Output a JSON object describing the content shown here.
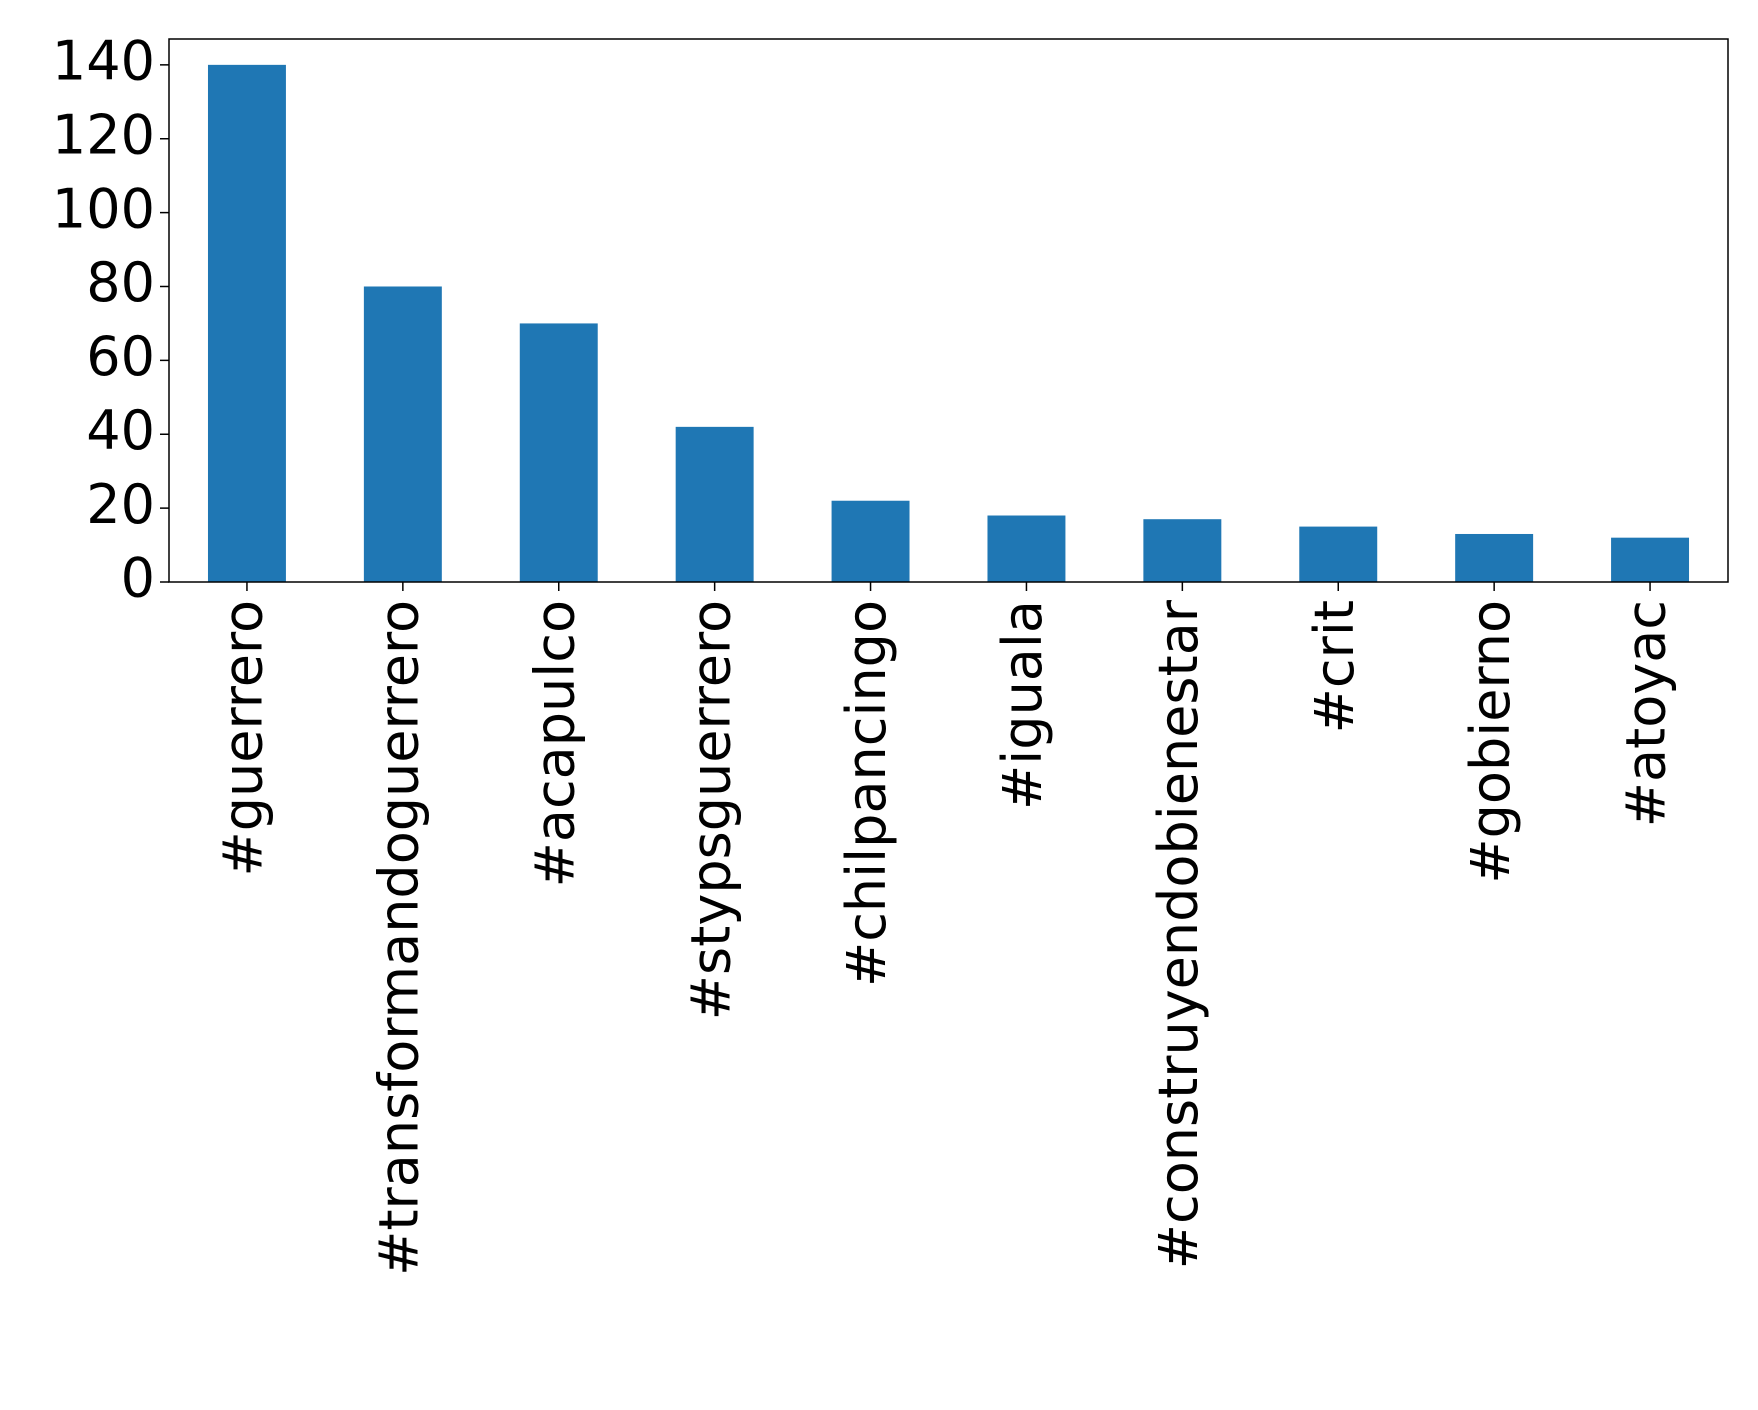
{
  "chart_data": {
    "type": "bar",
    "categories": [
      "#guerrero",
      "#transformandoguerrero",
      "#acapulco",
      "#stypsguerrero",
      "#chilpancingo",
      "#iguala",
      "#construyendobienestar",
      "#crit",
      "#gobierno",
      "#atoyac"
    ],
    "values": [
      140,
      80,
      70,
      42,
      22,
      18,
      17,
      15,
      13,
      12
    ],
    "color": "#1f77b4",
    "ylim": [
      0,
      147
    ],
    "yticks": [
      0,
      20,
      40,
      60,
      80,
      100,
      120,
      140
    ],
    "grid": false
  }
}
